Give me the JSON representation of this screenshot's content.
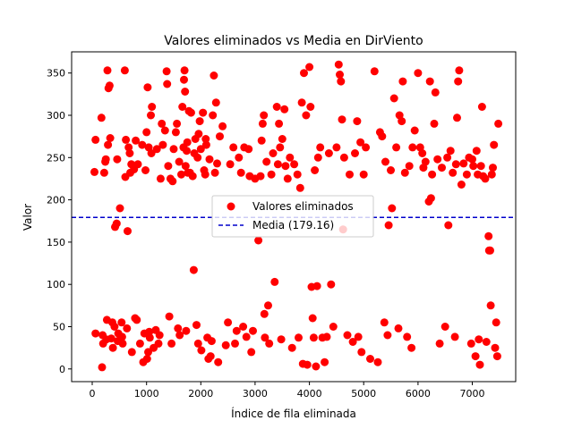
{
  "chart_data": {
    "type": "scatter",
    "title": "Valores eliminados vs Media en DirViento",
    "xlabel": "Índice de fila eliminada",
    "ylabel": "Valor",
    "xlim": [
      -380,
      7800
    ],
    "ylim": [
      -15,
      375
    ],
    "xticks": [
      0,
      1000,
      2000,
      3000,
      4000,
      5000,
      6000,
      7000
    ],
    "yticks": [
      0,
      50,
      100,
      150,
      200,
      250,
      300,
      350
    ],
    "grid": false,
    "legend_position": "center-right",
    "legend": [
      {
        "label": "Valores eliminados",
        "kind": "marker",
        "color": "#ff0000"
      },
      {
        "label": "Media (179.16)",
        "kind": "dashed-line",
        "color": "#0000cc"
      }
    ],
    "mean_line": {
      "y": 179.16,
      "color": "#0000cc"
    },
    "series": [
      {
        "name": "Valores eliminados",
        "color": "#ff0000",
        "points": [
          [
            40,
            233
          ],
          [
            60,
            271
          ],
          [
            60,
            42
          ],
          [
            170,
            297
          ],
          [
            180,
            2
          ],
          [
            190,
            40
          ],
          [
            200,
            30
          ],
          [
            220,
            232
          ],
          [
            240,
            245
          ],
          [
            250,
            248
          ],
          [
            260,
            35
          ],
          [
            270,
            58
          ],
          [
            280,
            353
          ],
          [
            290,
            265
          ],
          [
            300,
            332
          ],
          [
            320,
            335
          ],
          [
            330,
            273
          ],
          [
            350,
            36
          ],
          [
            370,
            55
          ],
          [
            380,
            25
          ],
          [
            410,
            50
          ],
          [
            420,
            168
          ],
          [
            450,
            172
          ],
          [
            460,
            248
          ],
          [
            470,
            33
          ],
          [
            480,
            42
          ],
          [
            510,
            190
          ],
          [
            540,
            55
          ],
          [
            550,
            38
          ],
          [
            560,
            30
          ],
          [
            600,
            353
          ],
          [
            610,
            227
          ],
          [
            620,
            271
          ],
          [
            640,
            48
          ],
          [
            650,
            163
          ],
          [
            670,
            262
          ],
          [
            690,
            255
          ],
          [
            700,
            232
          ],
          [
            720,
            242
          ],
          [
            730,
            20
          ],
          [
            770,
            236
          ],
          [
            790,
            60
          ],
          [
            800,
            270
          ],
          [
            820,
            58
          ],
          [
            840,
            242
          ],
          [
            880,
            30
          ],
          [
            920,
            265
          ],
          [
            940,
            8
          ],
          [
            960,
            42
          ],
          [
            980,
            235
          ],
          [
            1000,
            280
          ],
          [
            1010,
            12
          ],
          [
            1020,
            333
          ],
          [
            1030,
            20
          ],
          [
            1040,
            262
          ],
          [
            1050,
            44
          ],
          [
            1060,
            37
          ],
          [
            1080,
            300
          ],
          [
            1090,
            255
          ],
          [
            1100,
            310
          ],
          [
            1130,
            25
          ],
          [
            1170,
            46
          ],
          [
            1190,
            260
          ],
          [
            1220,
            30
          ],
          [
            1240,
            40
          ],
          [
            1260,
            225
          ],
          [
            1280,
            290
          ],
          [
            1300,
            265
          ],
          [
            1340,
            282
          ],
          [
            1370,
            352
          ],
          [
            1380,
            337
          ],
          [
            1400,
            240
          ],
          [
            1420,
            62
          ],
          [
            1440,
            225
          ],
          [
            1460,
            30
          ],
          [
            1480,
            222
          ],
          [
            1500,
            260
          ],
          [
            1540,
            280
          ],
          [
            1560,
            290
          ],
          [
            1580,
            48
          ],
          [
            1600,
            245
          ],
          [
            1610,
            40
          ],
          [
            1640,
            230
          ],
          [
            1660,
            310
          ],
          [
            1680,
            262
          ],
          [
            1690,
            342
          ],
          [
            1700,
            353
          ],
          [
            1710,
            328
          ],
          [
            1720,
            240
          ],
          [
            1730,
            45
          ],
          [
            1740,
            258
          ],
          [
            1750,
            268
          ],
          [
            1760,
            232
          ],
          [
            1780,
            305
          ],
          [
            1800,
            232
          ],
          [
            1820,
            303
          ],
          [
            1850,
            228
          ],
          [
            1870,
            117
          ],
          [
            1880,
            255
          ],
          [
            1900,
            272
          ],
          [
            1920,
            52
          ],
          [
            1940,
            250
          ],
          [
            1950,
            30
          ],
          [
            1960,
            278
          ],
          [
            1980,
            293
          ],
          [
            2000,
            260
          ],
          [
            2010,
            22
          ],
          [
            2040,
            303
          ],
          [
            2060,
            235
          ],
          [
            2080,
            230
          ],
          [
            2090,
            272
          ],
          [
            2100,
            265
          ],
          [
            2120,
            37
          ],
          [
            2140,
            12
          ],
          [
            2160,
            248
          ],
          [
            2180,
            15
          ],
          [
            2200,
            33
          ],
          [
            2220,
            300
          ],
          [
            2240,
            347
          ],
          [
            2260,
            232
          ],
          [
            2280,
            315
          ],
          [
            2300,
            243
          ],
          [
            2320,
            8
          ],
          [
            2350,
            275
          ],
          [
            2400,
            287
          ],
          [
            2460,
            28
          ],
          [
            2500,
            55
          ],
          [
            2540,
            242
          ],
          [
            2600,
            262
          ],
          [
            2630,
            30
          ],
          [
            2660,
            45
          ],
          [
            2700,
            250
          ],
          [
            2740,
            232
          ],
          [
            2780,
            50
          ],
          [
            2800,
            262
          ],
          [
            2840,
            38
          ],
          [
            2880,
            260
          ],
          [
            2900,
            228
          ],
          [
            2930,
            20
          ],
          [
            2960,
            45
          ],
          [
            3000,
            225
          ],
          [
            3060,
            152
          ],
          [
            3100,
            228
          ],
          [
            3120,
            270
          ],
          [
            3140,
            290
          ],
          [
            3160,
            300
          ],
          [
            3170,
            65
          ],
          [
            3180,
            37
          ],
          [
            3210,
            245
          ],
          [
            3240,
            75
          ],
          [
            3260,
            30
          ],
          [
            3300,
            230
          ],
          [
            3330,
            255
          ],
          [
            3360,
            103
          ],
          [
            3400,
            310
          ],
          [
            3420,
            242
          ],
          [
            3440,
            290
          ],
          [
            3460,
            262
          ],
          [
            3480,
            35
          ],
          [
            3500,
            272
          ],
          [
            3540,
            307
          ],
          [
            3560,
            240
          ],
          [
            3600,
            225
          ],
          [
            3640,
            250
          ],
          [
            3680,
            25
          ],
          [
            3720,
            242
          ],
          [
            3780,
            230
          ],
          [
            3800,
            37
          ],
          [
            3830,
            214
          ],
          [
            3860,
            315
          ],
          [
            3880,
            6
          ],
          [
            3900,
            350
          ],
          [
            3940,
            300
          ],
          [
            3960,
            5
          ],
          [
            4000,
            357
          ],
          [
            4020,
            310
          ],
          [
            4040,
            97
          ],
          [
            4060,
            60
          ],
          [
            4080,
            37
          ],
          [
            4100,
            235
          ],
          [
            4120,
            3
          ],
          [
            4140,
            98
          ],
          [
            4160,
            250
          ],
          [
            4200,
            262
          ],
          [
            4240,
            37
          ],
          [
            4280,
            8
          ],
          [
            4320,
            38
          ],
          [
            4360,
            255
          ],
          [
            4400,
            100
          ],
          [
            4440,
            50
          ],
          [
            4500,
            262
          ],
          [
            4540,
            360
          ],
          [
            4560,
            348
          ],
          [
            4580,
            340
          ],
          [
            4600,
            295
          ],
          [
            4620,
            165
          ],
          [
            4640,
            250
          ],
          [
            4700,
            40
          ],
          [
            4740,
            230
          ],
          [
            4800,
            32
          ],
          [
            4840,
            255
          ],
          [
            4880,
            293
          ],
          [
            4900,
            38
          ],
          [
            4940,
            268
          ],
          [
            4960,
            20
          ],
          [
            5000,
            230
          ],
          [
            5040,
            262
          ],
          [
            5120,
            12
          ],
          [
            5200,
            352
          ],
          [
            5260,
            8
          ],
          [
            5300,
            280
          ],
          [
            5340,
            275
          ],
          [
            5380,
            55
          ],
          [
            5400,
            245
          ],
          [
            5440,
            40
          ],
          [
            5460,
            170
          ],
          [
            5500,
            235
          ],
          [
            5520,
            190
          ],
          [
            5560,
            320
          ],
          [
            5600,
            262
          ],
          [
            5640,
            48
          ],
          [
            5660,
            300
          ],
          [
            5700,
            293
          ],
          [
            5720,
            340
          ],
          [
            5760,
            232
          ],
          [
            5800,
            38
          ],
          [
            5840,
            240
          ],
          [
            5880,
            25
          ],
          [
            5900,
            262
          ],
          [
            5940,
            282
          ],
          [
            6000,
            350
          ],
          [
            6040,
            262
          ],
          [
            6080,
            255
          ],
          [
            6100,
            238
          ],
          [
            6140,
            245
          ],
          [
            6200,
            198
          ],
          [
            6220,
            340
          ],
          [
            6240,
            202
          ],
          [
            6260,
            230
          ],
          [
            6300,
            290
          ],
          [
            6320,
            327
          ],
          [
            6360,
            248
          ],
          [
            6400,
            30
          ],
          [
            6440,
            238
          ],
          [
            6500,
            50
          ],
          [
            6540,
            250
          ],
          [
            6560,
            170
          ],
          [
            6600,
            258
          ],
          [
            6640,
            232
          ],
          [
            6680,
            38
          ],
          [
            6700,
            242
          ],
          [
            6720,
            297
          ],
          [
            6740,
            340
          ],
          [
            6760,
            353
          ],
          [
            6800,
            218
          ],
          [
            6840,
            243
          ],
          [
            6900,
            230
          ],
          [
            6940,
            250
          ],
          [
            6980,
            30
          ],
          [
            7000,
            248
          ],
          [
            7020,
            240
          ],
          [
            7060,
            15
          ],
          [
            7080,
            258
          ],
          [
            7100,
            230
          ],
          [
            7120,
            35
          ],
          [
            7140,
            5
          ],
          [
            7160,
            240
          ],
          [
            7180,
            310
          ],
          [
            7200,
            228
          ],
          [
            7240,
            225
          ],
          [
            7260,
            32
          ],
          [
            7300,
            157
          ],
          [
            7310,
            140
          ],
          [
            7330,
            140
          ],
          [
            7340,
            75
          ],
          [
            7360,
            230
          ],
          [
            7380,
            238
          ],
          [
            7400,
            265
          ],
          [
            7420,
            25
          ],
          [
            7440,
            55
          ],
          [
            7460,
            15
          ],
          [
            7480,
            290
          ]
        ]
      }
    ]
  }
}
